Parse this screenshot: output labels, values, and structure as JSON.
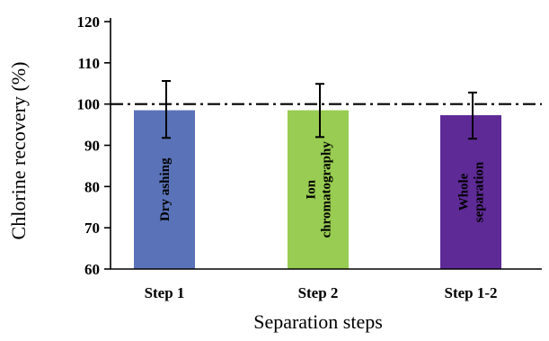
{
  "chart_data": {
    "type": "bar",
    "title": "",
    "xlabel": "Separation steps",
    "ylabel": "Chlorine recovery (%)",
    "ylim": [
      60,
      120
    ],
    "yticks": [
      60,
      70,
      80,
      90,
      100,
      110,
      120
    ],
    "categories": [
      "Step 1",
      "Step 2",
      "Step 1-2"
    ],
    "series": [
      {
        "values": [
          98.5,
          98.5,
          97.3
        ],
        "error_low": [
          91.8,
          92.0,
          91.6
        ],
        "error_high": [
          105.6,
          104.9,
          102.8
        ],
        "colors": [
          "#5A72B8",
          "#98CC52",
          "#5E2A96"
        ],
        "bar_labels": [
          [
            "Dry ashing"
          ],
          [
            "Ion",
            "chromatography"
          ],
          [
            "Whole",
            "separation"
          ]
        ]
      }
    ],
    "reference_line": {
      "value": 100,
      "style": "dash-dot"
    },
    "grid": false,
    "legend": "none"
  }
}
